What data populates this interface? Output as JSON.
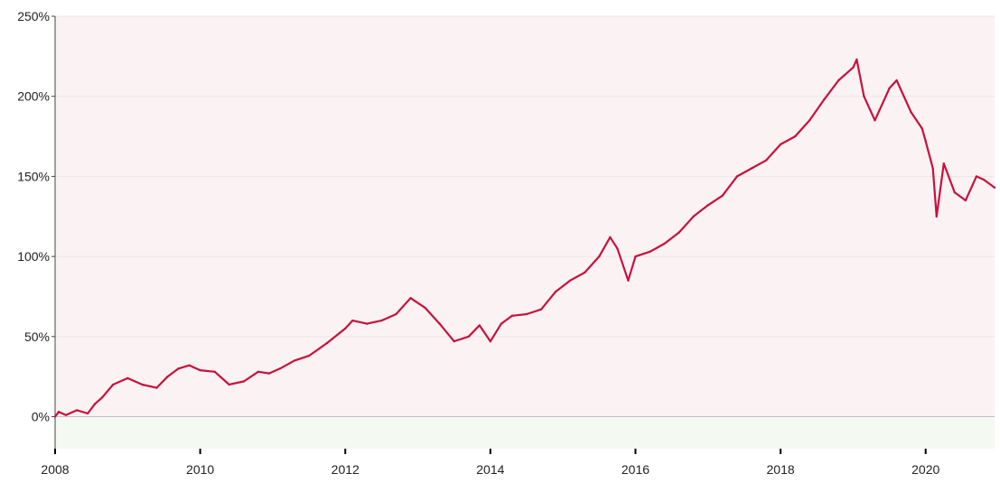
{
  "chart_data": {
    "type": "line",
    "title": "",
    "xlabel": "",
    "ylabel": "",
    "x_ticks": [
      "2008",
      "2010",
      "2012",
      "2014",
      "2016",
      "2018",
      "2020"
    ],
    "y_ticks": [
      "0%",
      "50%",
      "100%",
      "150%",
      "200%",
      "250%"
    ],
    "xlim": [
      2008.0,
      2020.95
    ],
    "ylim": [
      -20,
      250
    ],
    "grid": "horizontal",
    "legend": "none",
    "series": [
      {
        "x": [
          2008.0,
          2008.05,
          2008.15,
          2008.3,
          2008.45,
          2008.55,
          2008.65,
          2008.8,
          2009.0,
          2009.2,
          2009.4,
          2009.55,
          2009.7,
          2009.85,
          2010.0,
          2010.2,
          2010.4,
          2010.6,
          2010.8,
          2010.95,
          2011.1,
          2011.3,
          2011.5,
          2011.75,
          2012.0,
          2012.1,
          2012.3,
          2012.5,
          2012.7,
          2012.9,
          2013.1,
          2013.3,
          2013.5,
          2013.7,
          2013.85,
          2014.0,
          2014.15,
          2014.3,
          2014.5,
          2014.7,
          2014.9,
          2015.1,
          2015.3,
          2015.5,
          2015.65,
          2015.75,
          2015.9,
          2016.0,
          2016.2,
          2016.4,
          2016.6,
          2016.8,
          2017.0,
          2017.2,
          2017.4,
          2017.6,
          2017.8,
          2018.0,
          2018.2,
          2018.4,
          2018.6,
          2018.8,
          2019.0,
          2019.05,
          2019.15,
          2019.3,
          2019.5,
          2019.6,
          2019.8,
          2019.95,
          2020.0,
          2020.1,
          2020.15,
          2020.25,
          2020.4,
          2020.55,
          2020.7,
          2020.8,
          2020.95
        ],
        "y": [
          0,
          3,
          1,
          4,
          2,
          8,
          12,
          20,
          24,
          20,
          18,
          25,
          30,
          32,
          29,
          28,
          20,
          22,
          28,
          27,
          30,
          35,
          38,
          46,
          55,
          60,
          58,
          60,
          64,
          74,
          68,
          58,
          47,
          50,
          57,
          47,
          58,
          63,
          64,
          67,
          78,
          85,
          90,
          100,
          112,
          105,
          85,
          100,
          103,
          108,
          115,
          125,
          132,
          138,
          150,
          155,
          160,
          170,
          175,
          185,
          198,
          210,
          218,
          223,
          200,
          185,
          205,
          210,
          190,
          180,
          172,
          155,
          125,
          158,
          140,
          135,
          150,
          148,
          143
        ],
        "color": "#c8103e"
      }
    ]
  },
  "colors": {
    "positive_band": "#fbf3f3",
    "negative_band": "#f4f9f2",
    "line": "#c8103e",
    "zero_line": "#cdb8cf",
    "axis": "#444444"
  }
}
